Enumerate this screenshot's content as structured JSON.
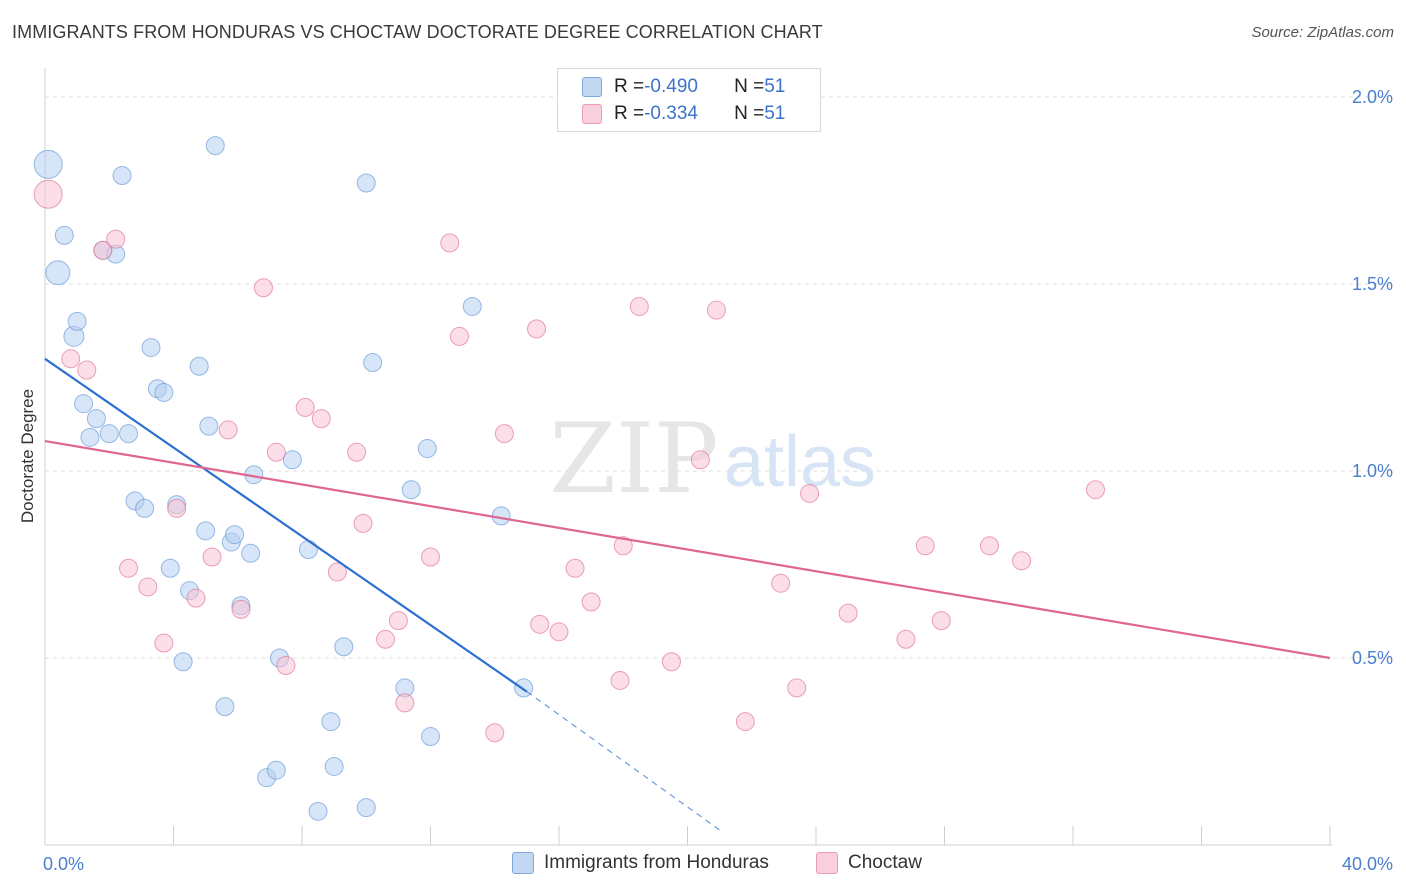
{
  "title": "IMMIGRANTS FROM HONDURAS VS CHOCTAW DOCTORATE DEGREE CORRELATION CHART",
  "source": "Source: ZipAtlas.com",
  "watermark": {
    "zip": "ZIP",
    "atlas": "atlas"
  },
  "legend": {
    "rows": [
      {
        "r_label": "R = ",
        "r_value": "-0.490",
        "n_label": "N = ",
        "n_value": "51",
        "color": "#a9c8ee"
      },
      {
        "r_label": "R = ",
        "r_value": "-0.334",
        "n_label": "N = ",
        "n_value": "51",
        "color": "#f5b9cb"
      }
    ]
  },
  "bottom_legend": {
    "items": [
      {
        "label": "Immigrants from Honduras",
        "color": "#a9c8ee"
      },
      {
        "label": "Choctaw",
        "color": "#f5b9cb"
      }
    ]
  },
  "chart_data": {
    "type": "scatter",
    "title": "IMMIGRANTS FROM HONDURAS VS CHOCTAW DOCTORATE DEGREE CORRELATION CHART",
    "xlabel": "",
    "ylabel": "Doctorate Degree",
    "xlim": [
      0,
      40
    ],
    "ylim": [
      0,
      2.1
    ],
    "x_tick_labels": [
      "0.0%",
      "40.0%"
    ],
    "y_ticks": [
      0.5,
      1.0,
      1.5,
      2.0
    ],
    "y_tick_labels": [
      "0.5%",
      "1.0%",
      "1.5%",
      "2.0%"
    ],
    "grid": "horizontal dashed",
    "legend_position": "top-center",
    "series": [
      {
        "name": "Immigrants from Honduras",
        "color": "#5b8fd6",
        "fill": "#b5d0f0",
        "trend": {
          "x": [
            0,
            15
          ],
          "y": [
            1.3,
            0.41
          ],
          "dashed_to_x": 21,
          "dashed_to_y": 0.04
        },
        "points": [
          [
            0.1,
            1.82,
            14
          ],
          [
            0.4,
            1.53,
            12
          ],
          [
            0.6,
            1.63,
            9
          ],
          [
            0.9,
            1.36,
            10
          ],
          [
            1.0,
            1.4,
            9
          ],
          [
            1.2,
            1.18,
            9
          ],
          [
            1.4,
            1.09,
            9
          ],
          [
            1.6,
            1.14,
            9
          ],
          [
            1.8,
            1.59,
            9
          ],
          [
            2.2,
            1.58,
            9
          ],
          [
            2.4,
            1.79,
            9
          ],
          [
            2.0,
            1.1,
            9
          ],
          [
            2.6,
            1.1,
            9
          ],
          [
            2.8,
            0.92,
            9
          ],
          [
            3.1,
            0.9,
            9
          ],
          [
            3.3,
            1.33,
            9
          ],
          [
            3.5,
            1.22,
            9
          ],
          [
            3.7,
            1.21,
            9
          ],
          [
            3.9,
            0.74,
            9
          ],
          [
            4.1,
            0.91,
            9
          ],
          [
            4.3,
            0.49,
            9
          ],
          [
            4.5,
            0.68,
            9
          ],
          [
            4.8,
            1.28,
            9
          ],
          [
            5.0,
            0.84,
            9
          ],
          [
            5.1,
            1.12,
            9
          ],
          [
            5.3,
            1.87,
            9
          ],
          [
            5.6,
            0.37,
            9
          ],
          [
            5.8,
            0.81,
            9
          ],
          [
            5.9,
            0.83,
            9
          ],
          [
            6.1,
            0.64,
            9
          ],
          [
            6.4,
            0.78,
            9
          ],
          [
            6.5,
            0.99,
            9
          ],
          [
            6.9,
            0.18,
            9
          ],
          [
            7.2,
            0.2,
            9
          ],
          [
            7.3,
            0.5,
            9
          ],
          [
            7.7,
            1.03,
            9
          ],
          [
            8.2,
            0.79,
            9
          ],
          [
            8.5,
            0.09,
            9
          ],
          [
            8.9,
            0.33,
            9
          ],
          [
            9.0,
            0.21,
            9
          ],
          [
            9.3,
            0.53,
            9
          ],
          [
            10.0,
            1.77,
            9
          ],
          [
            10.0,
            0.1,
            9
          ],
          [
            10.2,
            1.29,
            9
          ],
          [
            11.2,
            0.42,
            9
          ],
          [
            11.4,
            0.95,
            9
          ],
          [
            11.9,
            1.06,
            9
          ],
          [
            12.0,
            0.29,
            9
          ],
          [
            13.3,
            1.44,
            9
          ],
          [
            14.2,
            0.88,
            9
          ],
          [
            14.9,
            0.42,
            9
          ]
        ]
      },
      {
        "name": "Choctaw",
        "color": "#e0668f",
        "fill": "#f7c3d3",
        "trend": {
          "x": [
            0,
            40
          ],
          "y": [
            1.08,
            0.5
          ]
        },
        "points": [
          [
            0.1,
            1.74,
            14
          ],
          [
            0.8,
            1.3,
            9
          ],
          [
            1.3,
            1.27,
            9
          ],
          [
            1.8,
            1.59,
            9
          ],
          [
            2.2,
            1.62,
            9
          ],
          [
            2.6,
            0.74,
            9
          ],
          [
            3.2,
            0.69,
            9
          ],
          [
            3.7,
            0.54,
            9
          ],
          [
            4.1,
            0.9,
            9
          ],
          [
            4.7,
            0.66,
            9
          ],
          [
            5.2,
            0.77,
            9
          ],
          [
            5.7,
            1.11,
            9
          ],
          [
            6.1,
            0.63,
            9
          ],
          [
            6.8,
            1.49,
            9
          ],
          [
            7.2,
            1.05,
            9
          ],
          [
            7.5,
            0.48,
            9
          ],
          [
            8.1,
            1.17,
            9
          ],
          [
            8.6,
            1.14,
            9
          ],
          [
            9.1,
            0.73,
            9
          ],
          [
            9.7,
            1.05,
            9
          ],
          [
            9.9,
            0.86,
            9
          ],
          [
            10.6,
            0.55,
            9
          ],
          [
            11.0,
            0.6,
            9
          ],
          [
            11.2,
            0.38,
            9
          ],
          [
            12.0,
            0.77,
            9
          ],
          [
            12.6,
            1.61,
            9
          ],
          [
            12.9,
            1.36,
            9
          ],
          [
            14.0,
            0.3,
            9
          ],
          [
            14.3,
            1.1,
            9
          ],
          [
            15.3,
            1.38,
            9
          ],
          [
            15.4,
            0.59,
            9
          ],
          [
            16.0,
            0.57,
            9
          ],
          [
            16.5,
            0.74,
            9
          ],
          [
            17.0,
            0.65,
            9
          ],
          [
            17.9,
            0.44,
            9
          ],
          [
            18.0,
            0.8,
            9
          ],
          [
            18.5,
            1.44,
            9
          ],
          [
            19.5,
            0.49,
            9
          ],
          [
            20.4,
            1.03,
            9
          ],
          [
            20.9,
            1.43,
            9
          ],
          [
            21.8,
            0.33,
            9
          ],
          [
            22.9,
            0.7,
            9
          ],
          [
            23.4,
            0.42,
            9
          ],
          [
            23.8,
            0.94,
            9
          ],
          [
            25.0,
            0.62,
            9
          ],
          [
            26.8,
            0.55,
            9
          ],
          [
            27.4,
            0.8,
            9
          ],
          [
            27.9,
            0.6,
            9
          ],
          [
            29.4,
            0.8,
            9
          ],
          [
            30.4,
            0.76,
            9
          ],
          [
            32.7,
            0.95,
            9
          ]
        ]
      }
    ]
  }
}
